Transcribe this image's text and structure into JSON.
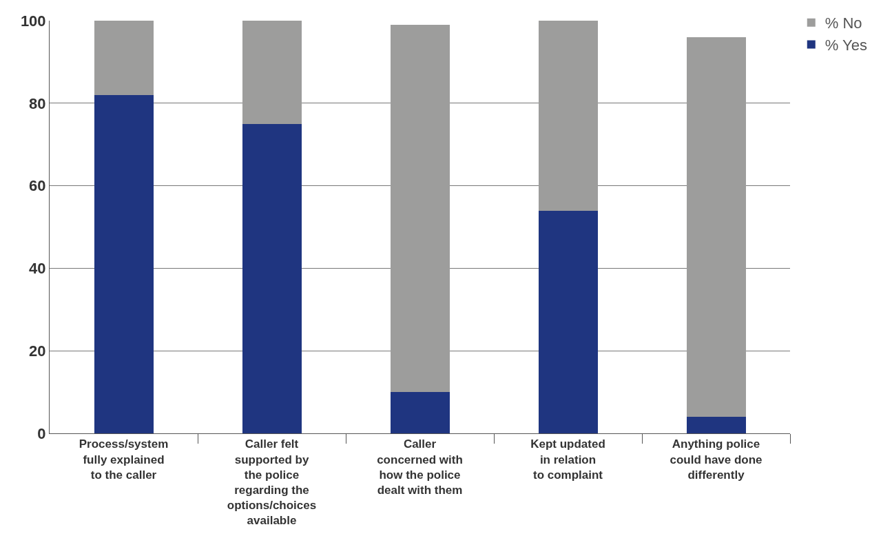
{
  "chart_data": {
    "type": "bar",
    "stacked": true,
    "categories": [
      "Process/system\nfully explained\nto the caller",
      "Caller felt\nsupported by\nthe police\nregarding the\noptions/choices\navailable",
      "Caller\nconcerned with\nhow the police\ndealt with them",
      "Kept updated\nin relation\nto complaint",
      "Anything police\ncould have done\ndifferently"
    ],
    "series": [
      {
        "name": "% Yes",
        "color": "#1f3580",
        "values": [
          82,
          75,
          10,
          54,
          4
        ]
      },
      {
        "name": "% No",
        "color": "#9d9d9c",
        "values": [
          18,
          25,
          89,
          46,
          92
        ]
      }
    ],
    "ylim": [
      0,
      100
    ],
    "yticks": [
      0,
      20,
      40,
      60,
      80,
      100
    ],
    "grid": "y",
    "legend": "top right"
  }
}
